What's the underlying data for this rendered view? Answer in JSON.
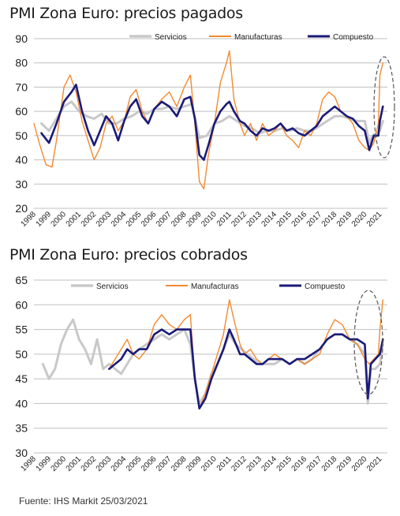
{
  "source": "Fuente: IHS Markit 25/03/2021",
  "colors": {
    "servicios": "#c8c8c8",
    "manufacturas": "#f28a30",
    "compuesto": "#1a1a7a",
    "grid": "#bfbfbf",
    "ellipse": "#555555"
  },
  "chart_data": [
    {
      "type": "line",
      "title": "PMI Zona Euro: precios pagados",
      "ylim": [
        20,
        90
      ],
      "yticks": [
        20,
        30,
        40,
        50,
        60,
        70,
        80,
        90
      ],
      "xlim": [
        1998,
        2021.5
      ],
      "xticks": [
        "1998",
        "1999",
        "2000",
        "2001",
        "2002",
        "2003",
        "2004",
        "2005",
        "2006",
        "2007",
        "2008",
        "2009",
        "2010",
        "2011",
        "2012",
        "2013",
        "2014",
        "2015",
        "2016",
        "2017",
        "2018",
        "2019",
        "2020",
        "2021"
      ],
      "grid": true,
      "legend": "top",
      "series": [
        {
          "name": "Servicios",
          "x": [
            1998.5,
            1999.0,
            1999.5,
            2000.0,
            2000.5,
            2001.0,
            2001.5,
            2002.0,
            2002.5,
            2003.0,
            2003.5,
            2004.0,
            2004.5,
            2005.0,
            2005.5,
            2006.0,
            2006.5,
            2007.0,
            2007.5,
            2008.0,
            2008.5,
            2009.0,
            2009.5,
            2010.0,
            2010.5,
            2011.0,
            2011.5,
            2012.0,
            2012.5,
            2013.0,
            2013.5,
            2014.0,
            2014.5,
            2015.0,
            2015.5,
            2016.0,
            2016.5,
            2017.0,
            2017.5,
            2018.0,
            2018.5,
            2019.0,
            2019.5,
            2020.0,
            2020.3,
            2020.5,
            2021.0,
            2021.2
          ],
          "y": [
            55,
            52,
            57,
            62,
            64,
            60,
            58,
            57,
            59,
            55,
            55,
            57,
            58,
            60,
            59,
            61,
            61,
            62,
            61,
            62,
            63,
            49,
            50,
            55,
            56,
            58,
            56,
            54,
            53,
            51,
            52,
            52,
            53,
            52,
            53,
            52,
            52,
            54,
            56,
            58,
            58,
            57,
            56,
            56,
            47,
            50,
            52,
            56
          ]
        },
        {
          "name": "Manufacturas",
          "x": [
            1998.0,
            1998.4,
            1998.8,
            1999.2,
            1999.5,
            2000.0,
            2000.4,
            2000.8,
            2001.2,
            2001.6,
            2002.0,
            2002.4,
            2002.8,
            2003.2,
            2003.6,
            2004.0,
            2004.4,
            2004.8,
            2005.2,
            2005.6,
            2006.0,
            2006.5,
            2007.0,
            2007.5,
            2008.0,
            2008.4,
            2008.7,
            2009.0,
            2009.3,
            2009.6,
            2010.0,
            2010.4,
            2010.8,
            2011.0,
            2011.3,
            2011.7,
            2012.0,
            2012.4,
            2012.8,
            2013.2,
            2013.6,
            2014.0,
            2014.4,
            2014.8,
            2015.2,
            2015.6,
            2016.0,
            2016.4,
            2016.8,
            2017.2,
            2017.6,
            2018.0,
            2018.4,
            2018.8,
            2019.2,
            2019.6,
            2020.0,
            2020.3,
            2020.6,
            2020.9,
            2021.0,
            2021.2
          ],
          "y": [
            55,
            46,
            38,
            37,
            48,
            70,
            75,
            68,
            56,
            48,
            40,
            45,
            55,
            58,
            52,
            56,
            66,
            69,
            60,
            55,
            61,
            65,
            68,
            62,
            70,
            75,
            55,
            31,
            28,
            42,
            55,
            72,
            80,
            85,
            65,
            55,
            50,
            55,
            48,
            55,
            50,
            52,
            55,
            50,
            48,
            45,
            52,
            50,
            55,
            65,
            68,
            66,
            60,
            58,
            55,
            48,
            45,
            44,
            47,
            55,
            75,
            80
          ]
        },
        {
          "name": "Compuesto",
          "x": [
            1998.5,
            1999.0,
            1999.5,
            2000.0,
            2000.5,
            2000.8,
            2001.2,
            2001.6,
            2002.0,
            2002.4,
            2002.8,
            2003.2,
            2003.6,
            2004.0,
            2004.4,
            2004.8,
            2005.2,
            2005.6,
            2006.0,
            2006.5,
            2007.0,
            2007.5,
            2008.0,
            2008.4,
            2008.7,
            2009.0,
            2009.3,
            2009.6,
            2010.0,
            2010.4,
            2010.8,
            2011.0,
            2011.3,
            2011.7,
            2012.0,
            2012.4,
            2012.8,
            2013.2,
            2013.6,
            2014.0,
            2014.4,
            2014.8,
            2015.2,
            2015.6,
            2016.0,
            2016.4,
            2016.8,
            2017.2,
            2017.6,
            2018.0,
            2018.4,
            2018.8,
            2019.2,
            2019.6,
            2020.0,
            2020.3,
            2020.6,
            2020.9,
            2021.0,
            2021.2
          ],
          "y": [
            51,
            47,
            55,
            64,
            68,
            71,
            60,
            52,
            46,
            52,
            58,
            55,
            48,
            56,
            62,
            65,
            58,
            55,
            61,
            64,
            62,
            58,
            65,
            66,
            57,
            42,
            40,
            46,
            55,
            60,
            63,
            64,
            60,
            56,
            55,
            52,
            50,
            53,
            52,
            53,
            55,
            52,
            53,
            51,
            50,
            52,
            54,
            58,
            60,
            62,
            60,
            58,
            57,
            54,
            52,
            44,
            50,
            50,
            56,
            62
          ]
        }
      ]
    },
    {
      "type": "line",
      "title": "PMI Zona Euro: precios cobrados",
      "ylim": [
        30,
        65
      ],
      "yticks": [
        30,
        35,
        40,
        45,
        50,
        55,
        60,
        65
      ],
      "xlim": [
        1998,
        2021.5
      ],
      "xticks": [
        "1998",
        "1999",
        "2000",
        "2001",
        "2002",
        "2003",
        "2004",
        "2005",
        "2006",
        "2007",
        "2008",
        "2009",
        "2010",
        "2011",
        "2012",
        "2013",
        "2014",
        "2015",
        "2016",
        "2017",
        "2018",
        "2019",
        "2020",
        "2021"
      ],
      "grid": true,
      "legend": "top",
      "series": [
        {
          "name": "Servicios",
          "x": [
            1998.6,
            1999.0,
            1999.4,
            1999.8,
            2000.2,
            2000.6,
            2001.0,
            2001.4,
            2001.8,
            2002.2,
            2002.6,
            2003.0,
            2003.4,
            2003.8,
            2004.2,
            2004.6,
            2005.0,
            2005.5,
            2006.0,
            2006.5,
            2007.0,
            2007.5,
            2008.0,
            2008.4,
            2008.7,
            2009.0,
            2009.4,
            2009.8,
            2010.2,
            2010.6,
            2011.0,
            2011.4,
            2011.8,
            2012.2,
            2012.6,
            2013.0,
            2013.5,
            2014.0,
            2014.5,
            2015.0,
            2015.5,
            2016.0,
            2016.5,
            2017.0,
            2017.5,
            2018.0,
            2018.5,
            2019.0,
            2019.5,
            2020.0,
            2020.2,
            2020.4,
            2020.7,
            2021.0,
            2021.2
          ],
          "y": [
            48,
            45,
            47,
            52,
            55,
            57,
            53,
            51,
            48,
            53,
            47,
            48,
            47,
            46,
            48,
            50,
            51,
            52,
            53,
            54,
            53,
            54,
            55,
            52,
            45,
            40,
            42,
            46,
            48,
            51,
            54,
            52,
            51,
            50,
            49,
            48,
            48,
            48,
            49,
            48,
            49,
            48,
            49,
            51,
            53,
            54,
            54,
            53,
            52,
            50,
            40,
            47,
            47,
            48,
            52
          ]
        },
        {
          "name": "Manufacturas",
          "x": [
            2003.0,
            2003.4,
            2003.8,
            2004.2,
            2004.6,
            2005.0,
            2005.5,
            2006.0,
            2006.5,
            2007.0,
            2007.5,
            2008.0,
            2008.4,
            2008.7,
            2009.0,
            2009.4,
            2009.8,
            2010.2,
            2010.6,
            2011.0,
            2011.3,
            2011.7,
            2012.0,
            2012.4,
            2012.8,
            2013.2,
            2013.6,
            2014.0,
            2014.5,
            2015.0,
            2015.5,
            2016.0,
            2016.5,
            2017.0,
            2017.5,
            2018.0,
            2018.5,
            2019.0,
            2019.5,
            2020.0,
            2020.3,
            2020.6,
            2020.9,
            2021.0,
            2021.2
          ],
          "y": [
            47,
            49,
            51,
            53,
            50,
            49,
            51,
            56,
            58,
            56,
            55,
            57,
            58,
            45,
            39,
            42,
            46,
            50,
            54,
            61,
            57,
            52,
            50,
            51,
            49,
            48,
            49,
            50,
            49,
            48,
            49,
            48,
            49,
            50,
            54,
            57,
            56,
            53,
            52,
            49,
            48,
            49,
            50,
            55,
            61
          ]
        },
        {
          "name": "Compuesto",
          "x": [
            2003.0,
            2003.4,
            2003.8,
            2004.2,
            2004.6,
            2005.0,
            2005.5,
            2006.0,
            2006.5,
            2007.0,
            2007.5,
            2008.0,
            2008.4,
            2008.7,
            2009.0,
            2009.4,
            2009.8,
            2010.2,
            2010.6,
            2011.0,
            2011.3,
            2011.7,
            2012.0,
            2012.4,
            2012.8,
            2013.2,
            2013.6,
            2014.0,
            2014.5,
            2015.0,
            2015.5,
            2016.0,
            2016.5,
            2017.0,
            2017.5,
            2018.0,
            2018.5,
            2019.0,
            2019.5,
            2020.0,
            2020.2,
            2020.4,
            2020.7,
            2021.0,
            2021.2
          ],
          "y": [
            47,
            48,
            49,
            51,
            50,
            51,
            51,
            54,
            55,
            54,
            55,
            55,
            55,
            45,
            39,
            41,
            45,
            48,
            51,
            55,
            53,
            50,
            50,
            49,
            48,
            48,
            49,
            49,
            49,
            48,
            49,
            49,
            50,
            51,
            53,
            54,
            54,
            53,
            53,
            52,
            41,
            48,
            49,
            50,
            53
          ]
        }
      ]
    }
  ]
}
